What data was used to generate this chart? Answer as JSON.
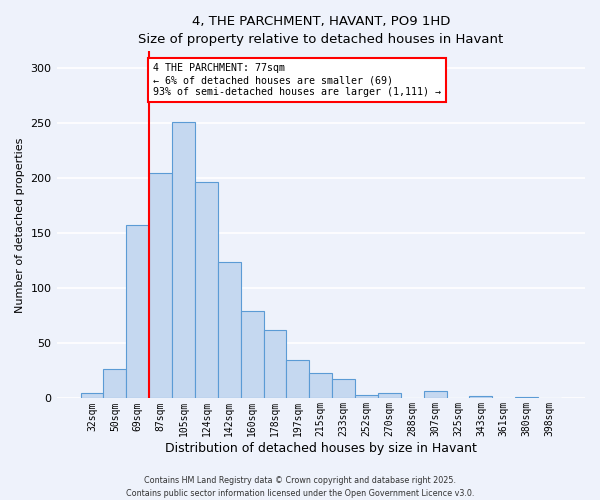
{
  "title": "4, THE PARCHMENT, HAVANT, PO9 1HD",
  "subtitle": "Size of property relative to detached houses in Havant",
  "xlabel": "Distribution of detached houses by size in Havant",
  "ylabel": "Number of detached properties",
  "bin_labels": [
    "32sqm",
    "50sqm",
    "69sqm",
    "87sqm",
    "105sqm",
    "124sqm",
    "142sqm",
    "160sqm",
    "178sqm",
    "197sqm",
    "215sqm",
    "233sqm",
    "252sqm",
    "270sqm",
    "288sqm",
    "307sqm",
    "325sqm",
    "343sqm",
    "361sqm",
    "380sqm",
    "398sqm"
  ],
  "bar_values": [
    5,
    27,
    157,
    205,
    251,
    196,
    124,
    79,
    62,
    35,
    23,
    18,
    3,
    5,
    0,
    7,
    0,
    2,
    0,
    1,
    0
  ],
  "bar_color": "#c5d8f0",
  "bar_edge_color": "#5b9bd5",
  "vline_x_index": 2.5,
  "vline_color": "red",
  "annotation_text": "4 THE PARCHMENT: 77sqm\n← 6% of detached houses are smaller (69)\n93% of semi-detached houses are larger (1,111) →",
  "annotation_box_color": "white",
  "annotation_box_edge_color": "red",
  "ylim": [
    0,
    315
  ],
  "yticks": [
    0,
    50,
    100,
    150,
    200,
    250,
    300
  ],
  "footer_line1": "Contains HM Land Registry data © Crown copyright and database right 2025.",
  "footer_line2": "Contains public sector information licensed under the Open Government Licence v3.0.",
  "background_color": "#eef2fb",
  "grid_color": "#ffffff"
}
